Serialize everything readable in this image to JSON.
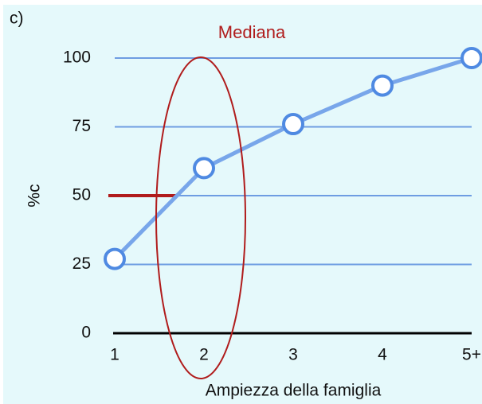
{
  "chart_data": {
    "type": "line",
    "panel_label": "c)",
    "annotation": "Mediana",
    "x_label": "Ampiezza della famiglia",
    "y_label": "%c",
    "categories": [
      "1",
      "2",
      "3",
      "4",
      "5+"
    ],
    "series": [
      {
        "color": "#78a6ea",
        "values": [
          27,
          60,
          76,
          90,
          100
        ]
      }
    ],
    "median_line": 50,
    "median_color": "#b01c1c",
    "ylim": [
      0,
      100
    ],
    "yticks": [
      0,
      25,
      50,
      75,
      100
    ],
    "grid": true,
    "grid_color": "#6e9de2"
  }
}
